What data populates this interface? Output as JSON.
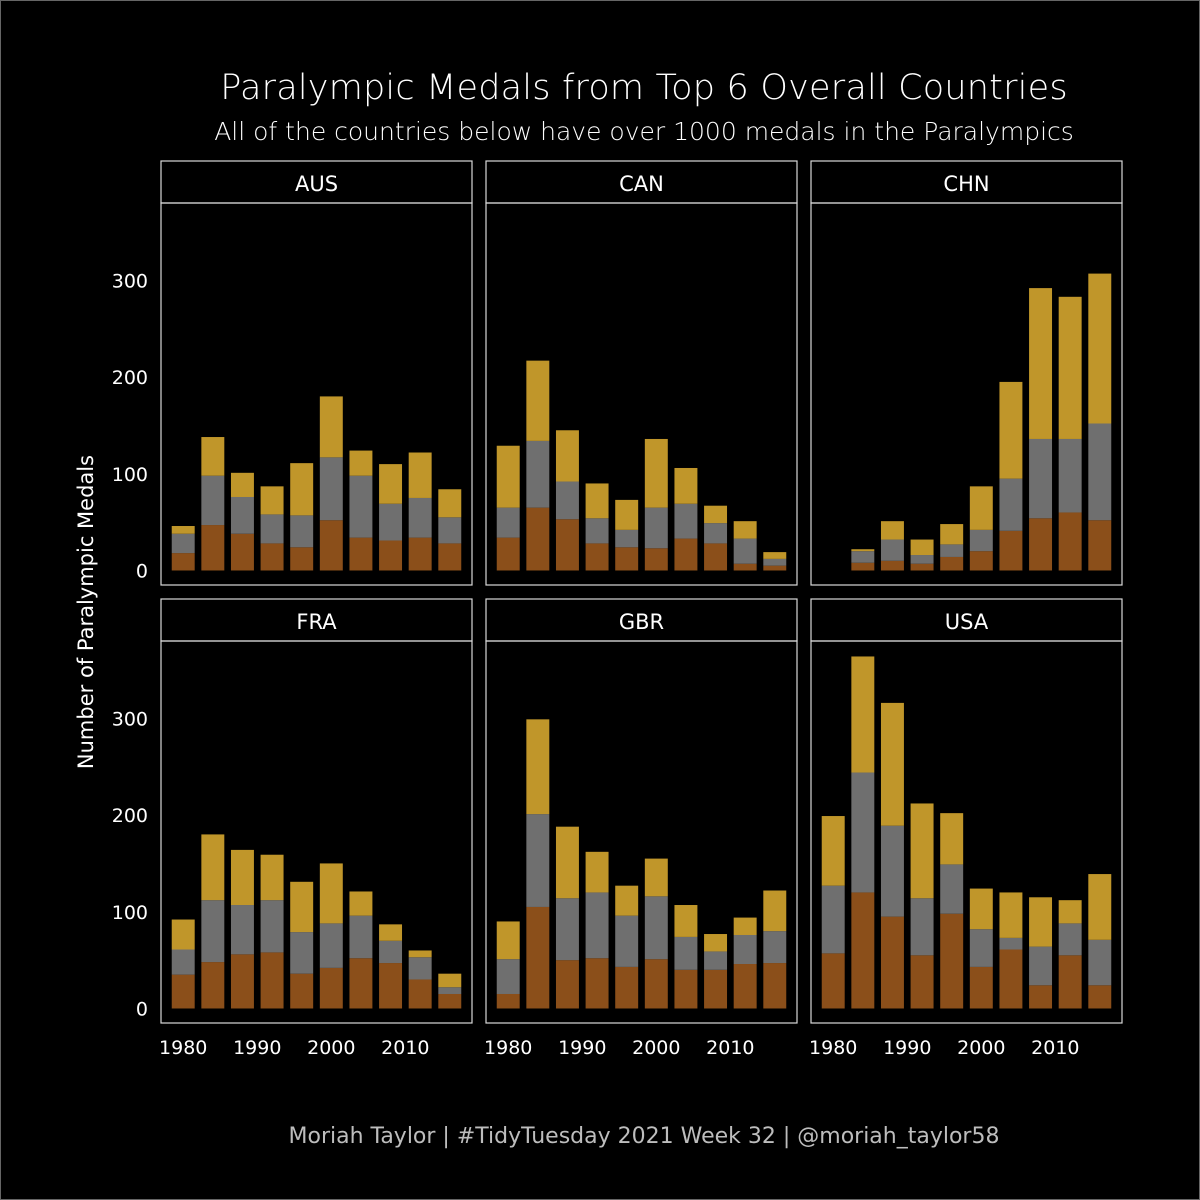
{
  "title": "Paralympic Medals from Top 6 Overall Countries",
  "subtitle": "All of the countries below have over 1000 medals in the Paralympics",
  "caption": "Moriah Taylor | #TidyTuesday 2021 Week 32 | @moriah_taylor58",
  "colors": {
    "background": "#000000",
    "gold": "#c0962a",
    "silver": "#6f6f6f",
    "bronze": "#8b4f1a",
    "panel_border": "#d9d9d9"
  },
  "chart_data": {
    "type": "bar",
    "stacked": true,
    "facets": [
      "AUS",
      "CAN",
      "CHN",
      "FRA",
      "GBR",
      "USA"
    ],
    "x": [
      1980,
      1984,
      1988,
      1992,
      1996,
      2000,
      2004,
      2008,
      2012,
      2016
    ],
    "xticks": [
      1980,
      1990,
      2000,
      2010
    ],
    "xlim": [
      1977,
      2019
    ],
    "ylabel": "Number of Paralympic Medals",
    "yticks": [
      0,
      100,
      200,
      300
    ],
    "ylim": [
      -15,
      380
    ],
    "panels": [
      {
        "name": "AUS",
        "bronze": [
          18,
          47,
          38,
          28,
          24,
          52,
          34,
          31,
          34,
          28
        ],
        "silver": [
          20,
          51,
          38,
          30,
          33,
          65,
          64,
          38,
          41,
          27
        ],
        "gold": [
          8,
          40,
          25,
          29,
          54,
          63,
          26,
          41,
          47,
          29
        ]
      },
      {
        "name": "CAN",
        "bronze": [
          34,
          65,
          53,
          28,
          24,
          23,
          33,
          28,
          7,
          5
        ],
        "silver": [
          31,
          69,
          39,
          26,
          18,
          42,
          36,
          21,
          26,
          7
        ],
        "gold": [
          64,
          83,
          53,
          36,
          31,
          71,
          37,
          18,
          18,
          7
        ]
      },
      {
        "name": "CHN",
        "bronze": [
          null,
          8,
          10,
          7,
          14,
          20,
          41,
          54,
          60,
          52
        ],
        "silver": [
          null,
          12,
          22,
          9,
          13,
          22,
          54,
          82,
          76,
          100
        ],
        "gold": [
          null,
          2,
          19,
          16,
          21,
          45,
          100,
          156,
          147,
          155
        ]
      },
      {
        "name": "FRA",
        "bronze": [
          35,
          48,
          56,
          58,
          36,
          42,
          52,
          47,
          30,
          15
        ],
        "silver": [
          26,
          64,
          51,
          54,
          43,
          46,
          44,
          23,
          23,
          7
        ],
        "gold": [
          31,
          68,
          57,
          47,
          52,
          62,
          25,
          17,
          7,
          14
        ]
      },
      {
        "name": "GBR",
        "bronze": [
          15,
          105,
          50,
          52,
          43,
          51,
          40,
          40,
          46,
          47
        ],
        "silver": [
          36,
          96,
          64,
          68,
          53,
          65,
          34,
          19,
          30,
          33
        ],
        "gold": [
          39,
          98,
          74,
          42,
          31,
          39,
          33,
          18,
          18,
          42
        ]
      },
      {
        "name": "USA",
        "bronze": [
          57,
          120,
          95,
          55,
          98,
          43,
          61,
          24,
          55,
          24
        ],
        "silver": [
          70,
          124,
          94,
          59,
          51,
          39,
          12,
          40,
          33,
          47
        ],
        "gold": [
          72,
          120,
          127,
          98,
          53,
          42,
          47,
          51,
          24,
          68
        ]
      }
    ]
  }
}
